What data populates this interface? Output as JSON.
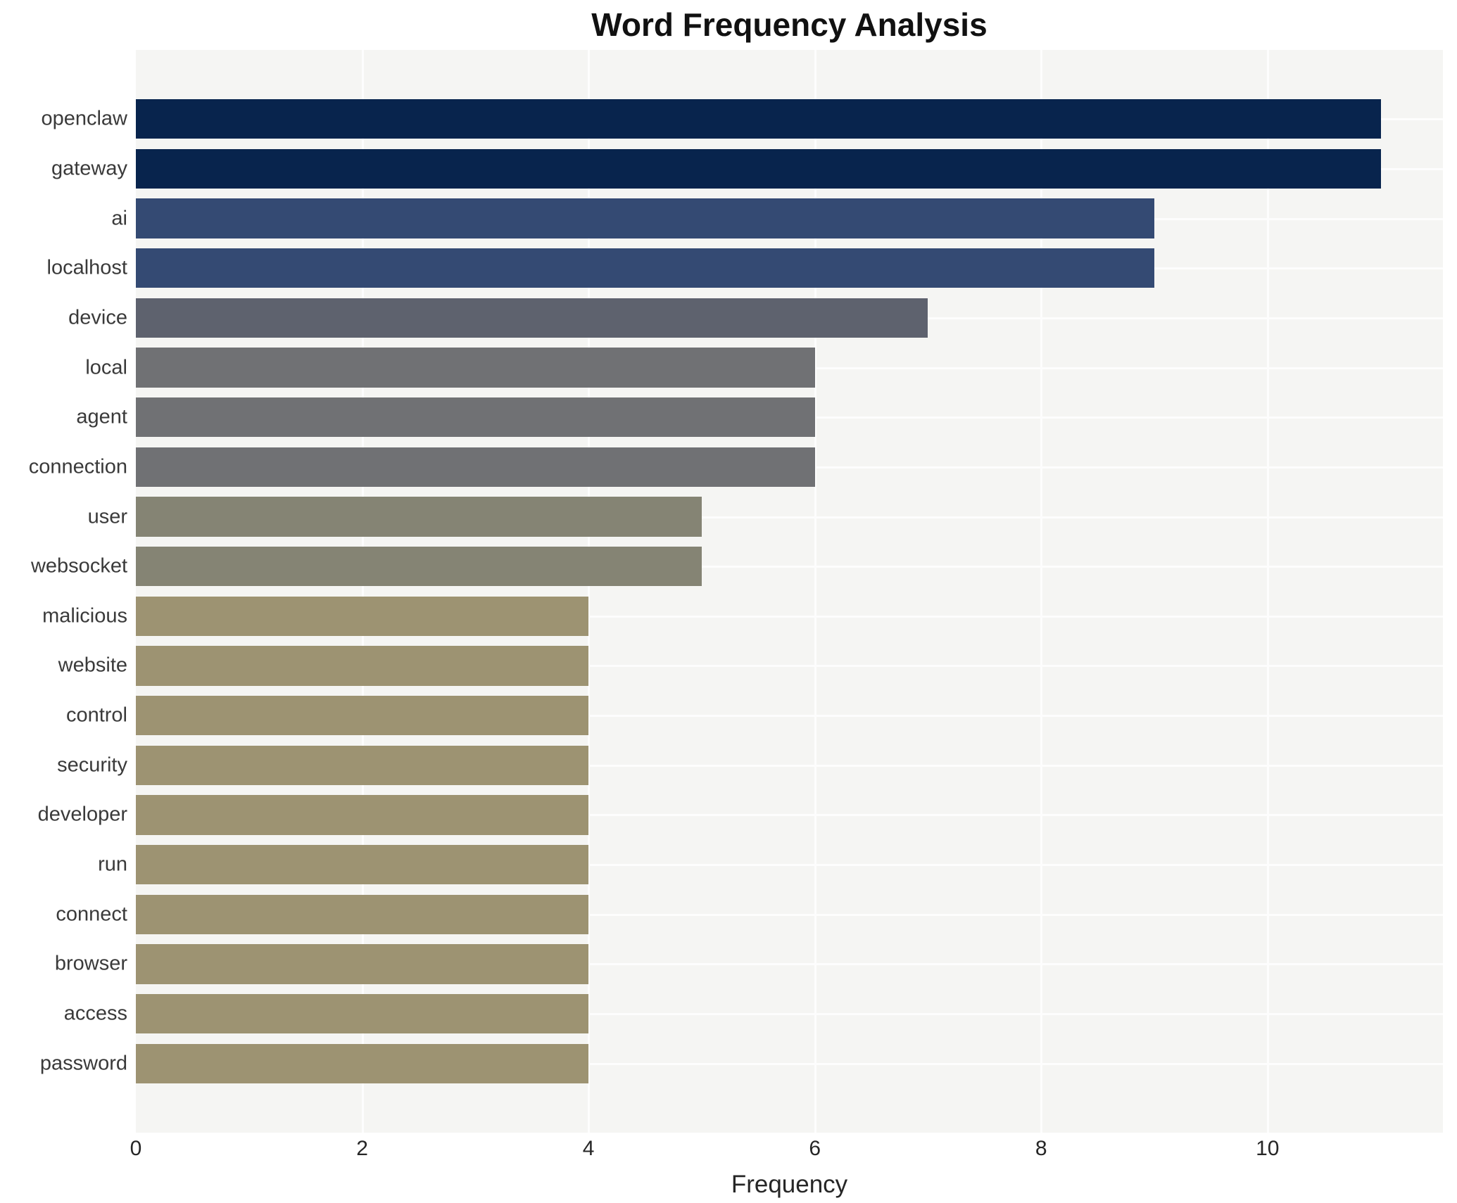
{
  "chart_data": {
    "type": "bar",
    "orientation": "horizontal",
    "title": "Word Frequency Analysis",
    "xlabel": "Frequency",
    "ylabel": "",
    "categories": [
      "openclaw",
      "gateway",
      "ai",
      "localhost",
      "device",
      "local",
      "agent",
      "connection",
      "user",
      "websocket",
      "malicious",
      "website",
      "control",
      "security",
      "developer",
      "run",
      "connect",
      "browser",
      "access",
      "password"
    ],
    "values": [
      11,
      11,
      9,
      9,
      7,
      6,
      6,
      6,
      5,
      5,
      4,
      4,
      4,
      4,
      4,
      4,
      4,
      4,
      4,
      4
    ],
    "bar_colors": [
      "#08244d",
      "#08244d",
      "#344a73",
      "#344a73",
      "#5e626e",
      "#707174",
      "#707174",
      "#707174",
      "#858474",
      "#858474",
      "#9d9372",
      "#9d9372",
      "#9d9372",
      "#9d9372",
      "#9d9372",
      "#9d9372",
      "#9d9372",
      "#9d9372",
      "#9d9372",
      "#9d9372"
    ],
    "xticks": [
      0,
      2,
      4,
      6,
      8,
      10
    ],
    "xlim": [
      0,
      11.55
    ],
    "grid": true,
    "legend": "none",
    "plot_bg_color": "#f5f5f3",
    "grid_color": "#fdfdfd",
    "title_color": "#111111",
    "tick_label_color": "#262626",
    "category_label_color": "#3a3a3a"
  }
}
